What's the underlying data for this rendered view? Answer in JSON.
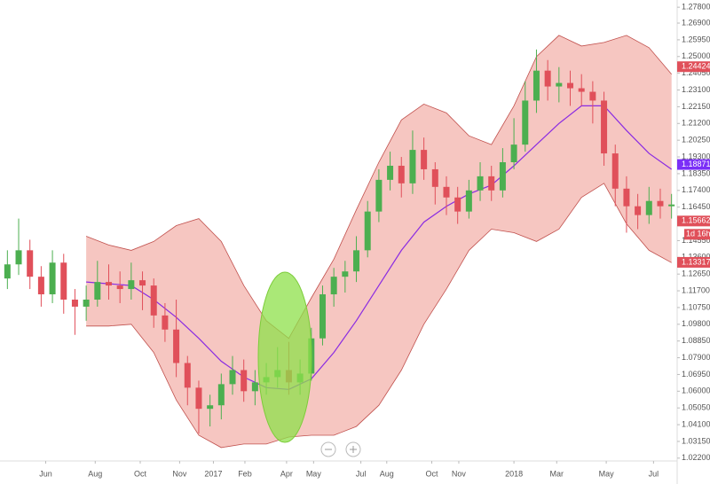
{
  "chart_data": {
    "type": "candlestick",
    "xlim": [
      -0.5,
      59.5
    ],
    "ylim": [
      1.0204,
      1.2821
    ],
    "grid": false,
    "up_color": "#4caf50",
    "down_color": "#e0505a",
    "open": [
      1.124,
      1.132,
      1.14,
      1.125,
      1.115,
      1.133,
      1.112,
      1.108,
      1.112,
      1.122,
      1.12,
      1.118,
      1.123,
      1.12,
      1.103,
      1.095,
      1.076,
      1.062,
      1.05,
      1.052,
      1.064,
      1.072,
      1.06,
      1.065,
      1.068,
      1.072,
      1.065,
      1.07,
      1.09,
      1.115,
      1.125,
      1.128,
      1.14,
      1.162,
      1.18,
      1.188,
      1.178,
      1.197,
      1.186,
      1.176,
      1.17,
      1.162,
      1.174,
      1.182,
      1.174,
      1.19,
      1.2,
      1.225,
      1.242,
      1.233,
      1.235,
      1.232,
      1.23,
      1.225,
      1.195,
      1.175,
      1.165,
      1.16,
      1.168,
      1.165
    ],
    "high": [
      1.14,
      1.158,
      1.146,
      1.131,
      1.14,
      1.138,
      1.118,
      1.12,
      1.134,
      1.132,
      1.128,
      1.133,
      1.128,
      1.124,
      1.11,
      1.112,
      1.08,
      1.066,
      1.058,
      1.07,
      1.08,
      1.078,
      1.072,
      1.076,
      1.085,
      1.088,
      1.078,
      1.096,
      1.12,
      1.13,
      1.134,
      1.148,
      1.168,
      1.186,
      1.196,
      1.193,
      1.208,
      1.204,
      1.19,
      1.182,
      1.176,
      1.18,
      1.19,
      1.188,
      1.198,
      1.215,
      1.236,
      1.254,
      1.248,
      1.244,
      1.242,
      1.24,
      1.236,
      1.23,
      1.2,
      1.182,
      1.172,
      1.176,
      1.175,
      1.172
    ],
    "low": [
      1.118,
      1.126,
      1.118,
      1.108,
      1.11,
      1.104,
      1.092,
      1.1,
      1.108,
      1.112,
      1.11,
      1.112,
      1.106,
      1.096,
      1.088,
      1.068,
      1.052,
      1.036,
      1.04,
      1.044,
      1.058,
      1.054,
      1.052,
      1.058,
      1.062,
      1.058,
      1.058,
      1.066,
      1.086,
      1.108,
      1.116,
      1.122,
      1.136,
      1.156,
      1.174,
      1.17,
      1.172,
      1.18,
      1.166,
      1.16,
      1.155,
      1.158,
      1.168,
      1.168,
      1.17,
      1.186,
      1.196,
      1.218,
      1.225,
      1.224,
      1.222,
      1.222,
      1.212,
      1.188,
      1.165,
      1.15,
      1.152,
      1.155,
      1.158,
      1.158
    ],
    "close": [
      1.132,
      1.14,
      1.125,
      1.115,
      1.133,
      1.112,
      1.108,
      1.112,
      1.122,
      1.12,
      1.118,
      1.123,
      1.12,
      1.103,
      1.095,
      1.076,
      1.062,
      1.05,
      1.052,
      1.064,
      1.072,
      1.06,
      1.065,
      1.068,
      1.072,
      1.065,
      1.07,
      1.09,
      1.115,
      1.125,
      1.128,
      1.14,
      1.162,
      1.18,
      1.188,
      1.178,
      1.197,
      1.186,
      1.176,
      1.17,
      1.162,
      1.174,
      1.182,
      1.174,
      1.19,
      1.2,
      1.225,
      1.242,
      1.233,
      1.235,
      1.232,
      1.23,
      1.225,
      1.195,
      1.175,
      1.165,
      1.16,
      1.168,
      1.165,
      1.166
    ],
    "bands": {
      "x": [
        7,
        9,
        11,
        13,
        15,
        17,
        19,
        21,
        23,
        25,
        27,
        29,
        31,
        33,
        35,
        37,
        39,
        41,
        43,
        45,
        47,
        49,
        51,
        53,
        55,
        57,
        59
      ],
      "upper": [
        1.148,
        1.143,
        1.14,
        1.145,
        1.154,
        1.158,
        1.145,
        1.12,
        1.1,
        1.09,
        1.113,
        1.135,
        1.163,
        1.19,
        1.214,
        1.223,
        1.218,
        1.205,
        1.2,
        1.222,
        1.25,
        1.262,
        1.256,
        1.258,
        1.262,
        1.255,
        1.24
      ],
      "middle": [
        1.122,
        1.121,
        1.12,
        1.112,
        1.102,
        1.09,
        1.077,
        1.068,
        1.062,
        1.061,
        1.067,
        1.082,
        1.1,
        1.12,
        1.14,
        1.156,
        1.165,
        1.172,
        1.177,
        1.188,
        1.2,
        1.212,
        1.222,
        1.222,
        1.208,
        1.195,
        1.186
      ],
      "lower": [
        1.097,
        1.097,
        1.098,
        1.082,
        1.055,
        1.035,
        1.028,
        1.03,
        1.03,
        1.034,
        1.035,
        1.035,
        1.04,
        1.052,
        1.072,
        1.098,
        1.118,
        1.14,
        1.152,
        1.15,
        1.145,
        1.152,
        1.17,
        1.178,
        1.155,
        1.14,
        1.133
      ],
      "fill": "#f6c6c1",
      "edge_color": "#c0504d",
      "middle_color": "#8a2be2"
    },
    "yticks": [
      {
        "value": 1.278,
        "label": "1.27800"
      },
      {
        "value": 1.269,
        "label": "1.26900"
      },
      {
        "value": 1.2595,
        "label": "1.25950"
      },
      {
        "value": 1.25,
        "label": "1.25000"
      },
      {
        "value": 1.2405,
        "label": "1.24050"
      },
      {
        "value": 1.231,
        "label": "1.23100"
      },
      {
        "value": 1.2215,
        "label": "1.22150"
      },
      {
        "value": 1.212,
        "label": "1.21200"
      },
      {
        "value": 1.2025,
        "label": "1.20250"
      },
      {
        "value": 1.193,
        "label": "1.19300"
      },
      {
        "value": 1.1835,
        "label": "1.18350"
      },
      {
        "value": 1.174,
        "label": "1.17400"
      },
      {
        "value": 1.1645,
        "label": "1.16450"
      },
      {
        "value": 1.155,
        "label": "1.15500"
      },
      {
        "value": 1.1455,
        "label": "1.14550"
      },
      {
        "value": 1.136,
        "label": "1.13600"
      },
      {
        "value": 1.1265,
        "label": "1.12650"
      },
      {
        "value": 1.117,
        "label": "1.11700"
      },
      {
        "value": 1.1075,
        "label": "1.10750"
      },
      {
        "value": 1.098,
        "label": "1.09800"
      },
      {
        "value": 1.0885,
        "label": "1.08850"
      },
      {
        "value": 1.079,
        "label": "1.07900"
      },
      {
        "value": 1.0695,
        "label": "1.06950"
      },
      {
        "value": 1.06,
        "label": "1.06000"
      },
      {
        "value": 1.0505,
        "label": "1.05050"
      },
      {
        "value": 1.041,
        "label": "1.04100"
      },
      {
        "value": 1.0315,
        "label": "1.03150"
      },
      {
        "value": 1.022,
        "label": "1.02200"
      }
    ],
    "xticks": [
      {
        "value": 3.4,
        "label": "Jun"
      },
      {
        "value": 7.8,
        "label": "Aug"
      },
      {
        "value": 11.8,
        "label": "Oct"
      },
      {
        "value": 15.3,
        "label": "Nov"
      },
      {
        "value": 18.3,
        "label": "2017"
      },
      {
        "value": 21.1,
        "label": "Feb"
      },
      {
        "value": 24.8,
        "label": "Apr"
      },
      {
        "value": 27.2,
        "label": "May"
      },
      {
        "value": 31.4,
        "label": "Jul"
      },
      {
        "value": 33.7,
        "label": "Aug"
      },
      {
        "value": 37.7,
        "label": "Oct"
      },
      {
        "value": 40.1,
        "label": "Nov"
      },
      {
        "value": 45,
        "label": "2018"
      },
      {
        "value": 48.8,
        "label": "Mar"
      },
      {
        "value": 53.2,
        "label": "May"
      },
      {
        "value": 57.4,
        "label": "Jul"
      }
    ],
    "price_labels": [
      {
        "value": 1.24424,
        "label": "1.24424",
        "color": "#e0505a"
      },
      {
        "value": 1.18871,
        "label": "1.18871",
        "color": "#7b2ff7"
      },
      {
        "value": 1.15662,
        "label": "1.15662",
        "color": "#e0505a"
      },
      {
        "value": 1.13317,
        "label": "1.13317",
        "color": "#e0505a"
      }
    ],
    "countdown": "1d 16h"
  }
}
